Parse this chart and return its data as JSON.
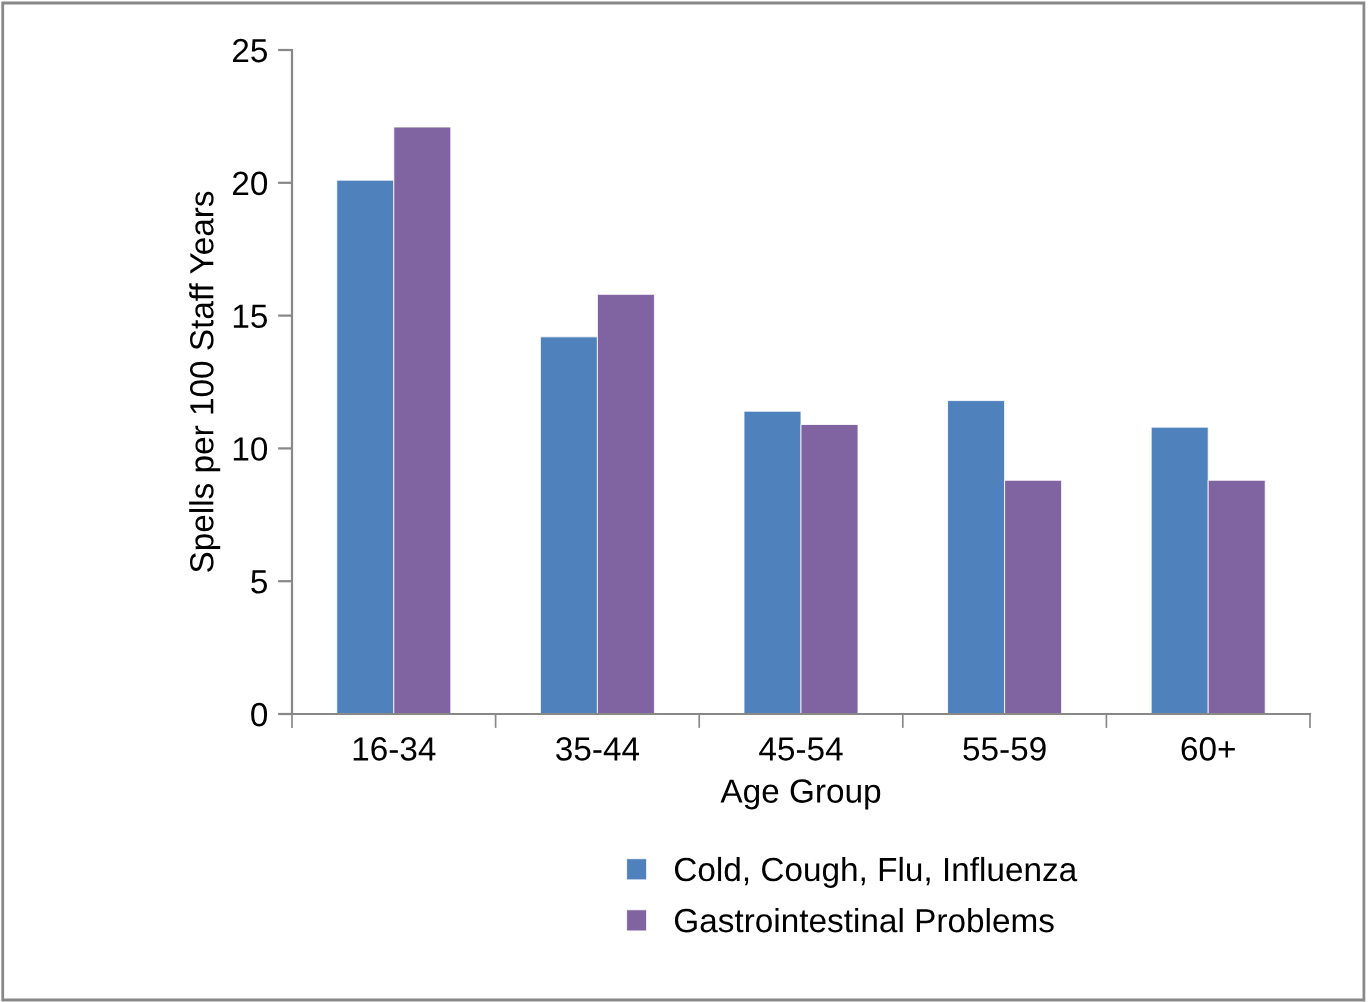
{
  "chart_data": {
    "type": "bar",
    "xlabel": "Age Group",
    "ylabel": "Spells per 100 Staff Years",
    "categories": [
      "16-34",
      "35-44",
      "45-54",
      "55-59",
      "60+"
    ],
    "series": [
      {
        "name": "Cold, Cough, Flu, Influenza",
        "color": "#4f81bd",
        "values": [
          20.1,
          14.2,
          11.4,
          11.8,
          10.8
        ]
      },
      {
        "name": "Gastrointestinal Problems",
        "color": "#8064a2",
        "values": [
          22.1,
          15.8,
          10.9,
          8.8,
          8.8
        ]
      }
    ],
    "ylim": [
      0,
      25
    ],
    "yticks": [
      0,
      5,
      10,
      15,
      20,
      25
    ],
    "grid": false,
    "legend": "bottom"
  }
}
